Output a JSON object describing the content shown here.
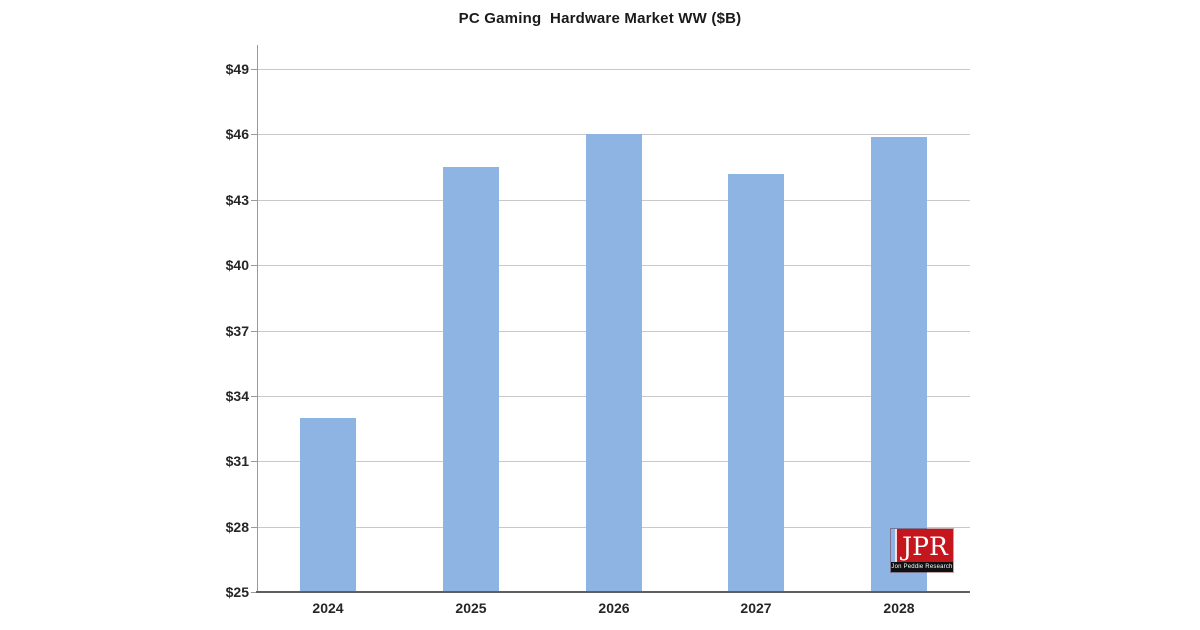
{
  "chart_data": {
    "type": "bar",
    "title": "PC Gaming  Hardware Market WW ($B)",
    "categories": [
      "2024",
      "2025",
      "2026",
      "2027",
      "2028"
    ],
    "values": [
      33.0,
      44.5,
      46.0,
      44.2,
      45.9
    ],
    "xlabel": "",
    "ylabel": "",
    "ylim": [
      25,
      50
    ],
    "yticks": [
      25,
      28,
      31,
      34,
      37,
      40,
      43,
      46,
      49
    ],
    "ytick_prefix": "$",
    "grid": "horizontal-major",
    "legend": "none",
    "bar_color": "#8db4e2"
  },
  "colors": {
    "bar": "#8db4e2",
    "gridline": "#c9c9c9",
    "y_axis": "#9a9a9a",
    "x_axis": "#5f5f5f",
    "tick_mark": "#9a9a9a",
    "text": "#262626",
    "logo_red": "#c5161d",
    "logo_black": "#101010",
    "logo_text": "#ffffff"
  },
  "logo": {
    "abbr": "JPR",
    "subtext": "Jon Peddie Research"
  }
}
